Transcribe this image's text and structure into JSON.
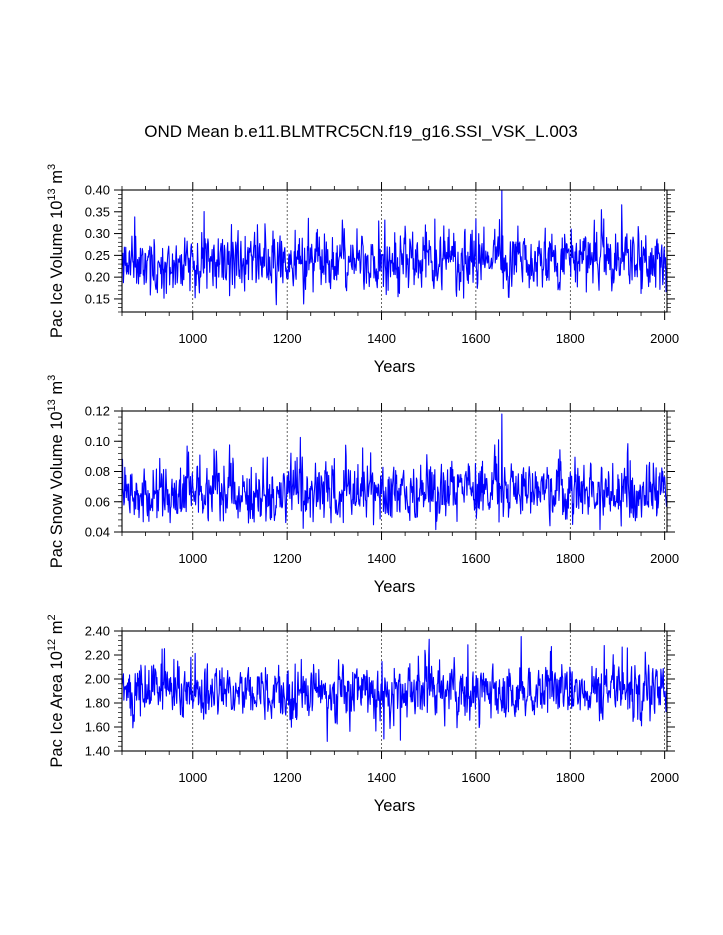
{
  "figure": {
    "title": "OND Mean b.e11.BLMTRC5CN.f19_g16.SSI_VSK_L.003"
  },
  "chart_data": [
    {
      "type": "line",
      "title": "OND Mean b.e11.BLMTRC5CN.f19_g16.SSI_VSK_L.003",
      "ylabel_main": "Pac Ice Volume 10",
      "ylabel_exp": "13",
      "ylabel_unit": " m",
      "ylabel_unit_exp": "3",
      "xlabel": "Years",
      "xlim": [
        850,
        2005
      ],
      "ylim": [
        0.12,
        0.4
      ],
      "xticks": [
        1000,
        1200,
        1400,
        1600,
        1800,
        2000
      ],
      "xtick_labels": [
        "1000",
        "1200",
        "1400",
        "1600",
        "1800",
        "2000"
      ],
      "yticks": [
        0.15,
        0.2,
        0.25,
        0.3,
        0.35,
        0.4
      ],
      "ytick_labels": [
        "0.15",
        "0.20",
        "0.25",
        "0.30",
        "0.35",
        "0.40"
      ],
      "series_color": "#0000ff",
      "mean": 0.235,
      "std": 0.032,
      "seed": 11,
      "spikes": [
        {
          "x": 1655,
          "y": 0.4
        },
        {
          "x": 1435,
          "y": 0.155
        },
        {
          "x": 1410,
          "y": 0.16
        }
      ]
    },
    {
      "type": "line",
      "title": "",
      "ylabel_main": "Pac Snow Volume 10",
      "ylabel_exp": "13",
      "ylabel_unit": " m",
      "ylabel_unit_exp": "3",
      "xlabel": "Years",
      "xlim": [
        850,
        2005
      ],
      "ylim": [
        0.04,
        0.12
      ],
      "xticks": [
        1000,
        1200,
        1400,
        1600,
        1800,
        2000
      ],
      "xtick_labels": [
        "1000",
        "1200",
        "1400",
        "1600",
        "1800",
        "2000"
      ],
      "yticks": [
        0.04,
        0.06,
        0.08,
        0.1,
        0.12
      ],
      "ytick_labels": [
        "0.04",
        "0.06",
        "0.08",
        "0.10",
        "0.12"
      ],
      "series_color": "#0000ff",
      "mean": 0.066,
      "std": 0.009,
      "seed": 23,
      "spikes": [
        {
          "x": 1655,
          "y": 0.118
        },
        {
          "x": 1648,
          "y": 0.101
        },
        {
          "x": 1805,
          "y": 0.045
        }
      ]
    },
    {
      "type": "line",
      "title": "",
      "ylabel_main": "Pac Ice Area 10",
      "ylabel_exp": "12",
      "ylabel_unit": " m",
      "ylabel_unit_exp": "2",
      "xlabel": "Years",
      "xlim": [
        850,
        2005
      ],
      "ylim": [
        1.4,
        2.4
      ],
      "xticks": [
        1000,
        1200,
        1400,
        1600,
        1800,
        2000
      ],
      "xtick_labels": [
        "1000",
        "1200",
        "1400",
        "1600",
        "1800",
        "2000"
      ],
      "yticks": [
        1.4,
        1.6,
        1.8,
        2.0,
        2.2,
        2.4
      ],
      "ytick_labels": [
        "1.40",
        "1.60",
        "1.80",
        "2.00",
        "2.20",
        "2.40"
      ],
      "series_color": "#0000ff",
      "mean": 1.89,
      "std": 0.11,
      "seed": 37,
      "spikes": [
        {
          "x": 1285,
          "y": 1.48
        },
        {
          "x": 1405,
          "y": 1.5
        },
        {
          "x": 1440,
          "y": 1.49
        },
        {
          "x": 1760,
          "y": 2.27
        },
        {
          "x": 935,
          "y": 2.25
        }
      ]
    }
  ]
}
